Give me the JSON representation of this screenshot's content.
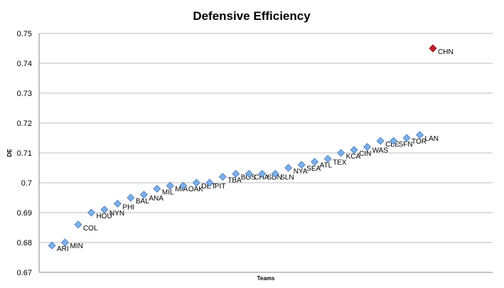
{
  "chart_data": {
    "type": "scatter",
    "title": "Defensive Efficiency",
    "xlabel": "Teams",
    "ylabel": "DE",
    "ylim": [
      0.67,
      0.75
    ],
    "yticks": [
      "0.67",
      "0.68",
      "0.69",
      "0.7",
      "0.71",
      "0.72",
      "0.73",
      "0.74",
      "0.75"
    ],
    "grid": "horizontal",
    "legend": "none",
    "colors": {
      "normal": "#7DAEE8",
      "normal_edge": "#4A7EBB",
      "highlight": "#C0202A",
      "highlight_edge": "#8B0A12"
    },
    "points": [
      {
        "label": "ARI",
        "x": 1,
        "y": 0.679
      },
      {
        "label": "MIN",
        "x": 2,
        "y": 0.68
      },
      {
        "label": "COL",
        "x": 3,
        "y": 0.686
      },
      {
        "label": "HOU",
        "x": 4,
        "y": 0.69
      },
      {
        "label": "NYN",
        "x": 5,
        "y": 0.691
      },
      {
        "label": "PHI",
        "x": 6,
        "y": 0.693
      },
      {
        "label": "BAL",
        "x": 7,
        "y": 0.695
      },
      {
        "label": "ANA",
        "x": 8,
        "y": 0.696
      },
      {
        "label": "MIL",
        "x": 9,
        "y": 0.698
      },
      {
        "label": "MIA",
        "x": 10,
        "y": 0.699
      },
      {
        "label": "OAK",
        "x": 11,
        "y": 0.699
      },
      {
        "label": "DET",
        "x": 12,
        "y": 0.7
      },
      {
        "label": "PIT",
        "x": 13,
        "y": 0.7
      },
      {
        "label": "TBA",
        "x": 14,
        "y": 0.702
      },
      {
        "label": "BOS",
        "x": 15,
        "y": 0.703
      },
      {
        "label": "CHA",
        "x": 16,
        "y": 0.703
      },
      {
        "label": "SDN",
        "x": 17,
        "y": 0.703
      },
      {
        "label": "SLN",
        "x": 18,
        "y": 0.703
      },
      {
        "label": "NYA",
        "x": 19,
        "y": 0.705
      },
      {
        "label": "SEA",
        "x": 20,
        "y": 0.706
      },
      {
        "label": "ATL",
        "x": 21,
        "y": 0.707
      },
      {
        "label": "TEX",
        "x": 22,
        "y": 0.708
      },
      {
        "label": "KCA",
        "x": 23,
        "y": 0.71
      },
      {
        "label": "CIN",
        "x": 24,
        "y": 0.711
      },
      {
        "label": "WAS",
        "x": 25,
        "y": 0.712
      },
      {
        "label": "CLE",
        "x": 26,
        "y": 0.714
      },
      {
        "label": "SFN",
        "x": 27,
        "y": 0.714
      },
      {
        "label": "TOR",
        "x": 28,
        "y": 0.715
      },
      {
        "label": "LAN",
        "x": 29,
        "y": 0.716
      },
      {
        "label": "CHN",
        "x": 30,
        "y": 0.745,
        "highlight": true
      }
    ]
  }
}
